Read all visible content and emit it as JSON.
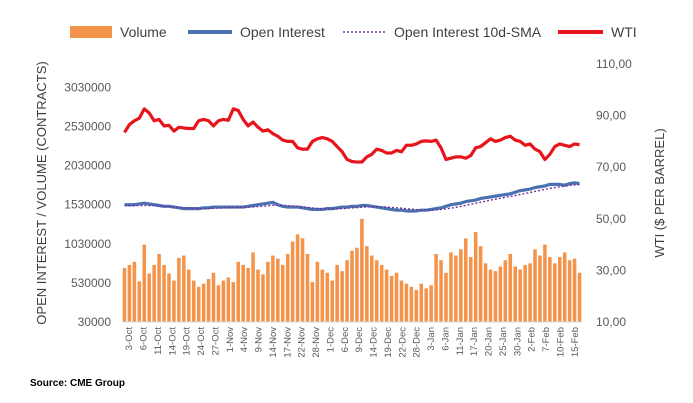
{
  "chart_data": {
    "type": "bar",
    "legend": {
      "position": "top",
      "entries": [
        {
          "label": "Volume",
          "color": "#f4934a",
          "kind": "bar"
        },
        {
          "label": "Open Interest",
          "color": "#4a72b0",
          "kind": "line"
        },
        {
          "label": "Open Interest 10d-SMA",
          "color": "#7030a0",
          "kind": "dotted-line"
        },
        {
          "label": "WTI",
          "color": "#e8141c",
          "kind": "line"
        }
      ]
    },
    "ylabel_left": "OPEN INTEREST / VOLUME (CONTRACTS)",
    "ylabel_right": "WTI ($ PER BARREL)",
    "left_axis": {
      "min": 30000,
      "max": 3330000,
      "ticks": [
        "30000",
        "530000",
        "1030000",
        "1530000",
        "2030000",
        "2530000",
        "3030000"
      ]
    },
    "right_axis": {
      "min": 10,
      "max": 110,
      "ticks": [
        "10,00",
        "30,00",
        "50,00",
        "70,00",
        "90,00",
        "110,00"
      ]
    },
    "x_tick_labels": [
      "3-Oct",
      "6-Oct",
      "11-Oct",
      "14-Oct",
      "19-Oct",
      "24-Oct",
      "27-Oct",
      "1-Nov",
      "4-Nov",
      "9-Nov",
      "14-Nov",
      "17-Nov",
      "22-Nov",
      "28-Nov",
      "1-Dec",
      "6-Dec",
      "9-Dec",
      "14-Dec",
      "19-Dec",
      "22-Dec",
      "28-Dec",
      "3-Jan",
      "6-Jan",
      "11-Jan",
      "17-Jan",
      "20-Jan",
      "25-Jan",
      "30-Jan",
      "2-Feb",
      "7-Feb",
      "10-Feb",
      "15-Feb"
    ],
    "volume": [
      720000,
      760000,
      800000,
      550000,
      1020000,
      650000,
      760000,
      900000,
      760000,
      650000,
      560000,
      850000,
      880000,
      700000,
      560000,
      480000,
      520000,
      580000,
      660000,
      500000,
      560000,
      600000,
      540000,
      800000,
      760000,
      720000,
      920000,
      700000,
      640000,
      800000,
      880000,
      840000,
      760000,
      900000,
      1060000,
      1150000,
      1100000,
      900000,
      540000,
      800000,
      700000,
      660000,
      560000,
      760000,
      680000,
      820000,
      940000,
      980000,
      1350000,
      1000000,
      880000,
      820000,
      760000,
      700000,
      620000,
      660000,
      560000,
      520000,
      480000,
      440000,
      520000,
      460000,
      500000,
      900000,
      820000,
      660000,
      920000,
      880000,
      960000,
      1100000,
      860000,
      1180000,
      1000000,
      780000,
      700000,
      680000,
      740000,
      820000,
      900000,
      740000,
      700000,
      760000,
      780000,
      960000,
      880000,
      1020000,
      860000,
      780000,
      860000,
      920000,
      820000,
      840000,
      660000
    ],
    "open_interest": [
      1530000,
      1530000,
      1530000,
      1540000,
      1550000,
      1540000,
      1530000,
      1520000,
      1510000,
      1510000,
      1500000,
      1490000,
      1480000,
      1480000,
      1480000,
      1480000,
      1490000,
      1490000,
      1500000,
      1500000,
      1500000,
      1500000,
      1500000,
      1500000,
      1500000,
      1510000,
      1520000,
      1530000,
      1540000,
      1550000,
      1560000,
      1530000,
      1510000,
      1500000,
      1500000,
      1500000,
      1490000,
      1480000,
      1470000,
      1470000,
      1470000,
      1480000,
      1480000,
      1490000,
      1500000,
      1500000,
      1510000,
      1510000,
      1520000,
      1520000,
      1510000,
      1500000,
      1490000,
      1480000,
      1470000,
      1460000,
      1460000,
      1450000,
      1450000,
      1450000,
      1460000,
      1460000,
      1470000,
      1480000,
      1490000,
      1510000,
      1530000,
      1540000,
      1550000,
      1570000,
      1580000,
      1590000,
      1610000,
      1620000,
      1630000,
      1640000,
      1650000,
      1660000,
      1670000,
      1690000,
      1710000,
      1720000,
      1730000,
      1750000,
      1760000,
      1770000,
      1790000,
      1790000,
      1790000,
      1780000,
      1800000,
      1810000,
      1800000
    ],
    "open_interest_sma": [
      1520000,
      1520000,
      1520000,
      1520000,
      1520000,
      1520000,
      1520000,
      1515000,
      1510000,
      1505000,
      1500000,
      1495000,
      1490000,
      1486000,
      1484000,
      1482000,
      1481000,
      1482000,
      1484000,
      1487000,
      1490000,
      1492000,
      1494000,
      1496000,
      1497000,
      1499000,
      1502000,
      1506000,
      1511000,
      1517000,
      1522000,
      1524000,
      1522000,
      1518000,
      1514000,
      1509000,
      1503000,
      1496000,
      1489000,
      1483000,
      1478000,
      1476000,
      1476000,
      1477000,
      1480000,
      1484000,
      1489000,
      1493000,
      1498000,
      1503000,
      1505000,
      1505000,
      1503000,
      1500000,
      1496000,
      1491000,
      1485000,
      1479000,
      1473000,
      1468000,
      1464000,
      1462000,
      1462000,
      1465000,
      1470000,
      1477000,
      1486000,
      1497000,
      1509000,
      1522000,
      1535000,
      1548000,
      1562000,
      1575000,
      1588000,
      1600000,
      1612000,
      1624000,
      1636000,
      1648000,
      1661000,
      1674000,
      1687000,
      1700000,
      1713000,
      1726000,
      1739000,
      1750000,
      1760000,
      1768000,
      1776000,
      1783000,
      1788000
    ],
    "wti": [
      83.5,
      86.5,
      88,
      89,
      92.6,
      91,
      88,
      88.5,
      86,
      86.2,
      84,
      85.5,
      85.2,
      85,
      85,
      88,
      88.5,
      88,
      86,
      88,
      88.5,
      88.2,
      92.6,
      92,
      88.5,
      86,
      87.5,
      85.5,
      84,
      84.5,
      83,
      82,
      80.5,
      80,
      80,
      77.5,
      77,
      77,
      80,
      81,
      81.5,
      81,
      80,
      78,
      76,
      73,
      72.2,
      72,
      72,
      74,
      75,
      77,
      76.5,
      75.5,
      75.5,
      76.5,
      76,
      78.5,
      78.5,
      79,
      80,
      80.2,
      80,
      80.5,
      77.5,
      73,
      73.5,
      74,
      74,
      73.5,
      74.5,
      77.5,
      78,
      79.5,
      81,
      80,
      80.5,
      81.5,
      82,
      80.5,
      80,
      78.5,
      79,
      77,
      76,
      73,
      75,
      78,
      79,
      78.5,
      78,
      79,
      78.7
    ]
  },
  "source": "Source: CME Group"
}
